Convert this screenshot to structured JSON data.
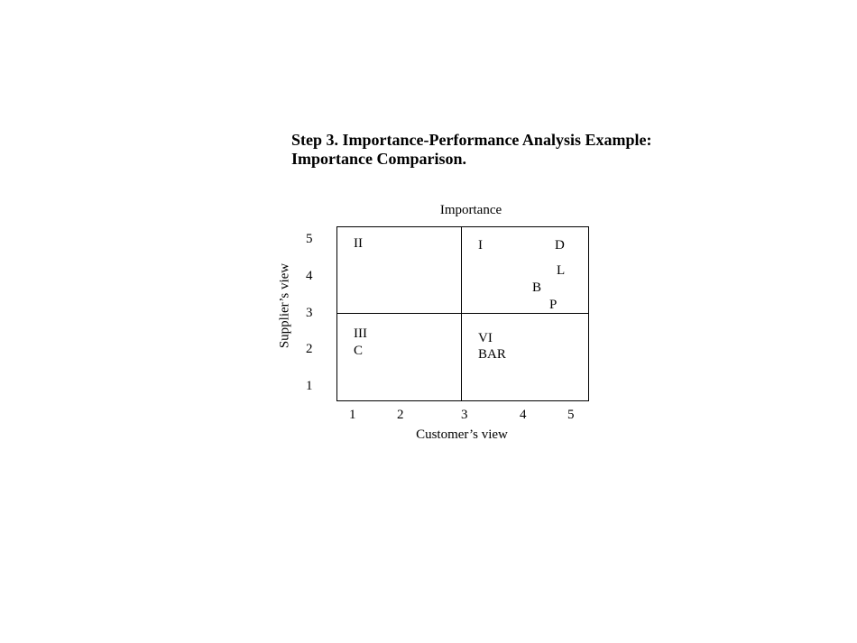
{
  "title": {
    "line1": "Step 3. Importance-Performance Analysis Example:",
    "line2": "Importance Comparison."
  },
  "diagram": {
    "top_label": "Importance",
    "x_label": "Customer’s view",
    "y_label": "Supplier’s view",
    "y_ticks": [
      "5",
      "4",
      "3",
      "2",
      "1"
    ],
    "x_ticks": [
      "1",
      "2",
      "3",
      "4",
      "5"
    ],
    "quadrants": {
      "II": "II",
      "I": "I",
      "III": "III",
      "VI": "VI"
    },
    "points": {
      "D": "D",
      "L": "L",
      "B": "B",
      "P": "P",
      "C": "C",
      "BAR": "BAR"
    }
  }
}
